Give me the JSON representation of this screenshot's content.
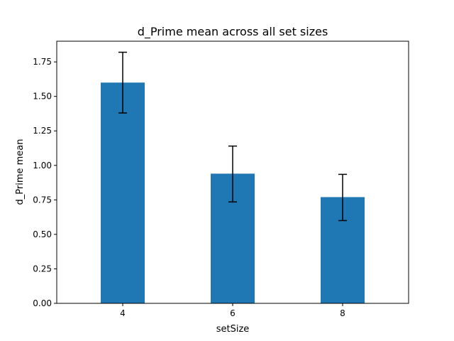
{
  "chart_data": {
    "type": "bar",
    "title": "d_Prime mean across all set sizes",
    "xlabel": "setSize",
    "ylabel": "d_Prime mean",
    "categories": [
      "4",
      "6",
      "8"
    ],
    "values": [
      1.6,
      0.94,
      0.77
    ],
    "error_lower": [
      1.38,
      0.735,
      0.6
    ],
    "error_upper": [
      1.82,
      1.14,
      0.935
    ],
    "ylim": [
      0,
      1.9
    ],
    "yticks": [
      0.0,
      0.25,
      0.5,
      0.75,
      1.0,
      1.25,
      1.5,
      1.75
    ],
    "ytick_labels": [
      "0.00",
      "0.25",
      "0.50",
      "0.75",
      "1.00",
      "1.25",
      "1.50",
      "1.75"
    ],
    "bar_color": "#1f77b4",
    "error_color": "#000000",
    "grid": false,
    "legend": "none"
  }
}
